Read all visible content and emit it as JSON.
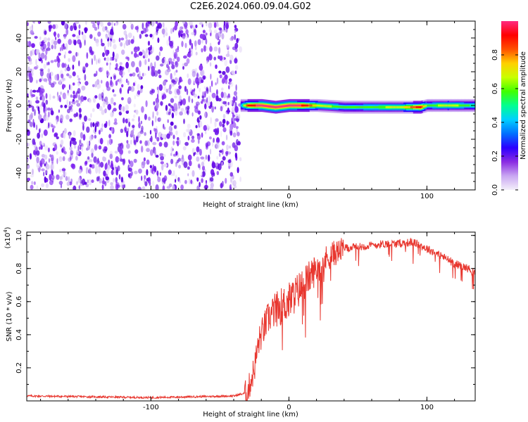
{
  "title": "C2E6.2024.060.09.04.G02",
  "chart_data": [
    {
      "type": "heatmap",
      "xlabel": "Height of straight line (km)",
      "ylabel": "Frequency (Hz)",
      "xlim": [
        -190,
        135
      ],
      "ylim": [
        -50,
        50
      ],
      "xticks": [
        -100,
        0,
        100
      ],
      "yticks": [
        -40,
        -20,
        0,
        20,
        40
      ],
      "xtick_labels": [
        "-100",
        "0",
        "100"
      ],
      "ytick_labels": [
        "-40",
        "-20",
        "0",
        "20",
        "40"
      ],
      "noise_region_x": [
        -190,
        -35
      ],
      "signal_band": {
        "x": [
          -35,
          -30,
          -20,
          -10,
          0,
          10,
          20,
          40,
          60,
          80,
          95,
          100,
          115,
          135
        ],
        "center_freq": [
          0,
          0,
          0,
          -1,
          0,
          0,
          0,
          -1,
          -1,
          -1,
          -1,
          0,
          0,
          0
        ],
        "peak_amplitude": [
          0.45,
          0.9,
          1.0,
          1.0,
          1.0,
          0.95,
          0.7,
          0.55,
          0.6,
          0.65,
          0.95,
          0.55,
          0.7,
          0.5
        ]
      },
      "colorbar": {
        "label": "Normalized spectral amplitude",
        "range": [
          0.0,
          1.0
        ],
        "ticks": [
          0.0,
          0.2,
          0.4,
          0.6,
          0.8
        ],
        "tick_labels": [
          "0.0",
          "0.2",
          "0.4",
          "0.6",
          "0.8"
        ],
        "colors": [
          "#f4f0fa",
          "#c9a6f2",
          "#8a2be2",
          "#2a00ff",
          "#0070ff",
          "#00d0ff",
          "#00ff90",
          "#40ff00",
          "#c8ff00",
          "#ffd000",
          "#ff5000",
          "#ff0000",
          "#ff2a80"
        ]
      },
      "grid": false
    },
    {
      "type": "line",
      "xlabel": "Height of straight line (km)",
      "ylabel": "SNR (10 * v/v)",
      "y_multiplier": "(x10",
      "y_multiplier_exp": "4",
      "y_multiplier_close": ")",
      "xlim": [
        -190,
        135
      ],
      "ylim": [
        0.0,
        1.02
      ],
      "xticks": [
        -100,
        0,
        100
      ],
      "yticks": [
        0.2,
        0.4,
        0.6,
        0.8,
        1.0
      ],
      "xtick_labels": [
        "-100",
        "0",
        "100"
      ],
      "ytick_labels": [
        "0.2",
        "0.4",
        "0.6",
        "0.8",
        "1.0"
      ],
      "color": "#e8372f",
      "series": [
        {
          "x": [
            -190,
            -100,
            -40,
            -30,
            -25,
            -22,
            -20,
            -15,
            -10,
            0,
            10,
            20,
            30,
            40,
            50,
            60,
            70,
            80,
            90,
            100,
            110,
            120,
            130,
            135
          ],
          "values": [
            0.03,
            0.02,
            0.03,
            0.05,
            0.2,
            0.35,
            0.4,
            0.5,
            0.55,
            0.6,
            0.7,
            0.8,
            0.88,
            0.92,
            0.93,
            0.94,
            0.95,
            0.95,
            0.96,
            0.92,
            0.88,
            0.83,
            0.8,
            0.77
          ]
        }
      ],
      "grid": false
    }
  ]
}
